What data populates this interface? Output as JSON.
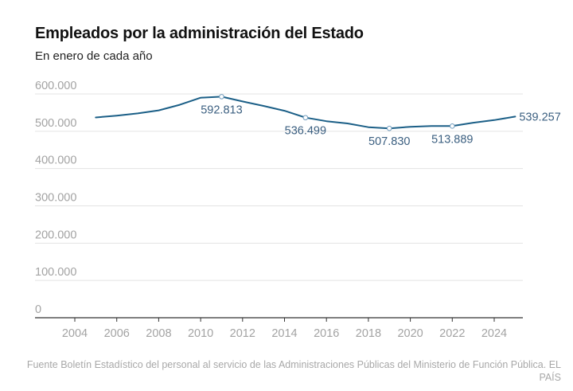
{
  "header": {
    "title": "Empleados por la administración del Estado",
    "subtitle": "En enero de cada año"
  },
  "footer": {
    "source": "Fuente Boletín Estadístico del personal al servicio de las Administraciones Públicas del Ministerio de Función Pública. EL PAÍS"
  },
  "colors": {
    "line": "#1b5f87",
    "label": "#3b5f80",
    "grid": "#e3e3e3",
    "axis": "#333333",
    "tick_text": "#a3a3a3"
  },
  "chart_data": {
    "type": "line",
    "title": "Empleados por la administración del Estado",
    "subtitle": "En enero de cada año",
    "xlabel": "",
    "ylabel": "",
    "x": [
      2005,
      2006,
      2007,
      2008,
      2009,
      2010,
      2011,
      2012,
      2013,
      2014,
      2015,
      2016,
      2017,
      2018,
      2019,
      2020,
      2021,
      2022,
      2023,
      2024,
      2025
    ],
    "series": [
      {
        "name": "Empleados",
        "values": [
          537000,
          542000,
          548000,
          556000,
          571000,
          590000,
          592813,
          580000,
          568000,
          555000,
          536499,
          527000,
          521000,
          511000,
          507830,
          512000,
          514000,
          513889,
          523000,
          530000,
          539257
        ]
      }
    ],
    "annotations": [
      {
        "x": 2011,
        "value": 592813,
        "label": "592.813",
        "marker": true
      },
      {
        "x": 2015,
        "value": 536499,
        "label": "536.499",
        "marker": true
      },
      {
        "x": 2019,
        "value": 507830,
        "label": "507.830",
        "marker": true
      },
      {
        "x": 2022,
        "value": 513889,
        "label": "513.889",
        "marker": true
      },
      {
        "x": 2025,
        "value": 539257,
        "label": "539.257",
        "marker": false
      }
    ],
    "ylim": [
      0,
      600000
    ],
    "xlim": [
      2002.6,
      2025.4
    ],
    "yticks": [
      0,
      100000,
      200000,
      300000,
      400000,
      500000,
      600000
    ],
    "ytick_labels": [
      "0",
      "100.000",
      "200.000",
      "300.000",
      "400.000",
      "500.000",
      "600.000"
    ],
    "xticks": [
      2004,
      2006,
      2008,
      2010,
      2012,
      2014,
      2016,
      2018,
      2020,
      2022,
      2024
    ],
    "xtick_labels": [
      "2004",
      "2006",
      "2008",
      "2010",
      "2012",
      "2014",
      "2016",
      "2018",
      "2020",
      "2022",
      "2024"
    ],
    "grid": true,
    "legend": "none"
  }
}
